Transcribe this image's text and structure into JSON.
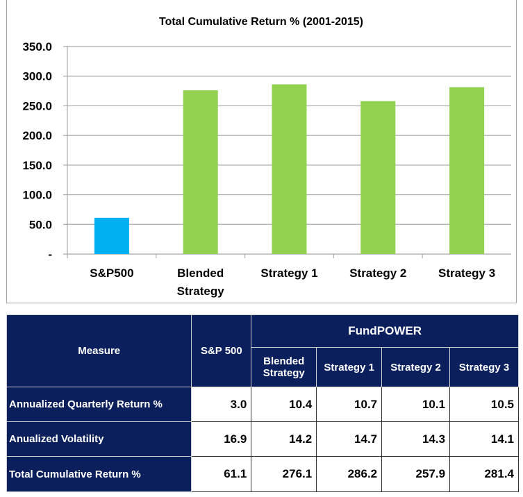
{
  "chart_data": {
    "type": "bar",
    "title": "Total Cumulative Return % (2001-2015)",
    "categories": [
      "S&P500",
      "Blended Strategy",
      "Strategy 1",
      "Strategy 2",
      "Strategy 3"
    ],
    "category_lines": [
      [
        "S&P500"
      ],
      [
        "Blended",
        "Strategy"
      ],
      [
        "Strategy 1"
      ],
      [
        "Strategy 2"
      ],
      [
        "Strategy 3"
      ]
    ],
    "values": [
      61.1,
      276.1,
      286.2,
      257.9,
      281.4
    ],
    "colors": [
      "#00b0f0",
      "#92d050",
      "#92d050",
      "#92d050",
      "#92d050"
    ],
    "ylim": [
      0,
      350
    ],
    "yticks": [
      0,
      50,
      100,
      150,
      200,
      250,
      300,
      350
    ],
    "ytick_labels": [
      "-",
      "50.0",
      "100.0",
      "150.0",
      "200.0",
      "250.0",
      "300.0",
      "350.0"
    ],
    "grid": true,
    "xlabel": "",
    "ylabel": ""
  },
  "table": {
    "measure_header": "Measure",
    "sp_header": "S&P 500",
    "group_header": "FundPOWER",
    "sub_headers": [
      "Blended Strategy",
      "Strategy 1",
      "Strategy 2",
      "Strategy 3"
    ],
    "rows": [
      {
        "label": "Annualized Quarterly Return %",
        "values": [
          "3.0",
          "10.4",
          "10.7",
          "10.1",
          "10.5"
        ]
      },
      {
        "label": "Anualized Volatility",
        "values": [
          "16.9",
          "14.2",
          "14.7",
          "14.3",
          "14.1"
        ]
      },
      {
        "label": "Total Cumulative Return %",
        "values": [
          "61.1",
          "276.1",
          "286.2",
          "257.9",
          "281.4"
        ]
      }
    ]
  }
}
